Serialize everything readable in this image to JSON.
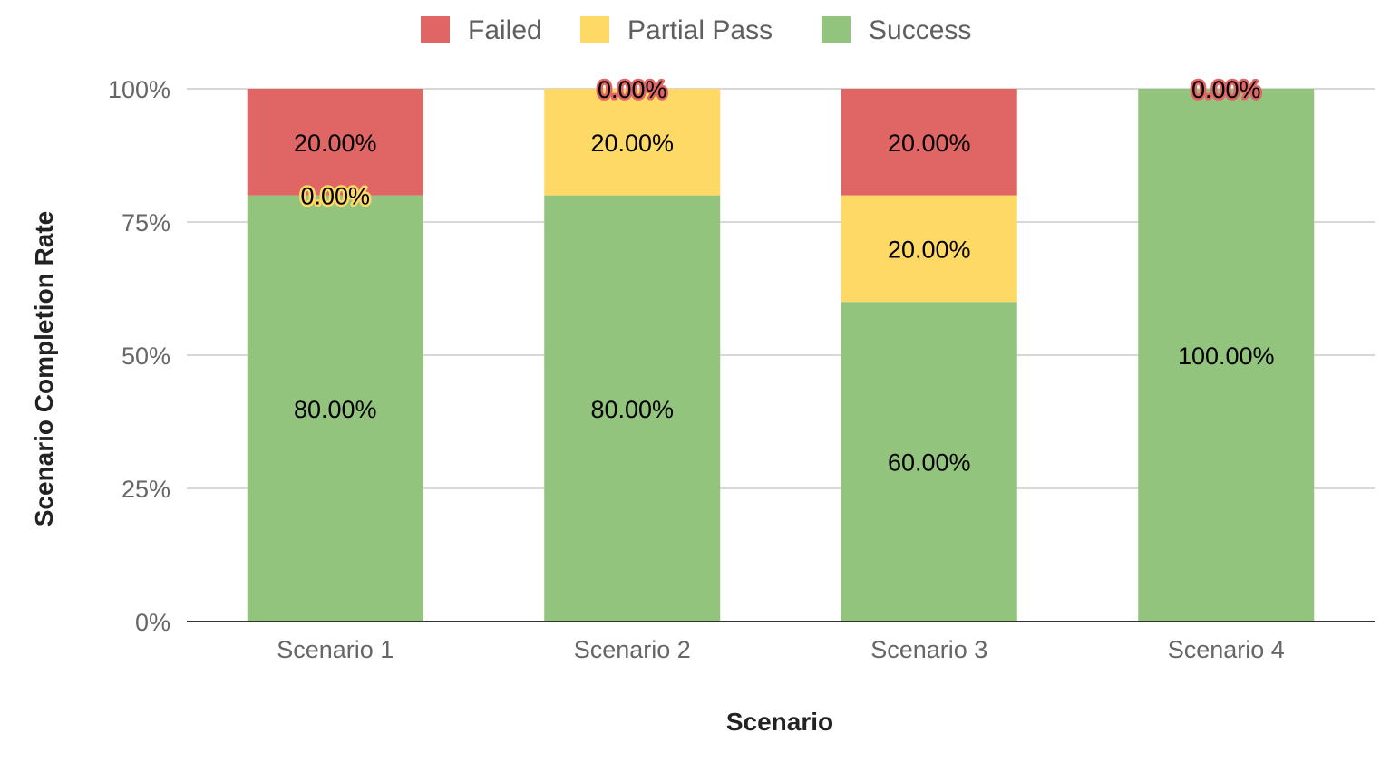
{
  "chart_data": {
    "type": "bar",
    "stacked": true,
    "title": "",
    "xlabel": "Scenario",
    "ylabel": "Scenario Completion Rate",
    "categories": [
      "Scenario 1",
      "Scenario 2",
      "Scenario 3",
      "Scenario 4"
    ],
    "ylim": [
      0,
      100
    ],
    "yticks": [
      0,
      25,
      50,
      75,
      100
    ],
    "ytick_labels": [
      "0%",
      "25%",
      "50%",
      "75%",
      "100%"
    ],
    "grid": true,
    "legend_position": "top",
    "series": [
      {
        "name": "Success",
        "color": "#93c47d",
        "values": [
          80,
          80,
          60,
          100
        ],
        "labels": [
          "80.00%",
          "80.00%",
          "60.00%",
          "100.00%"
        ]
      },
      {
        "name": "Partial Pass",
        "color": "#ffd966",
        "values": [
          0,
          20,
          20,
          0
        ],
        "labels": [
          "0.00%",
          "20.00%",
          "20.00%",
          ""
        ]
      },
      {
        "name": "Failed",
        "color": "#e06666",
        "values": [
          20,
          0,
          20,
          0
        ],
        "labels": [
          "20.00%",
          "0.00%",
          "20.00%",
          "0.00%"
        ]
      }
    ],
    "legend_order": [
      "Failed",
      "Partial Pass",
      "Success"
    ]
  }
}
